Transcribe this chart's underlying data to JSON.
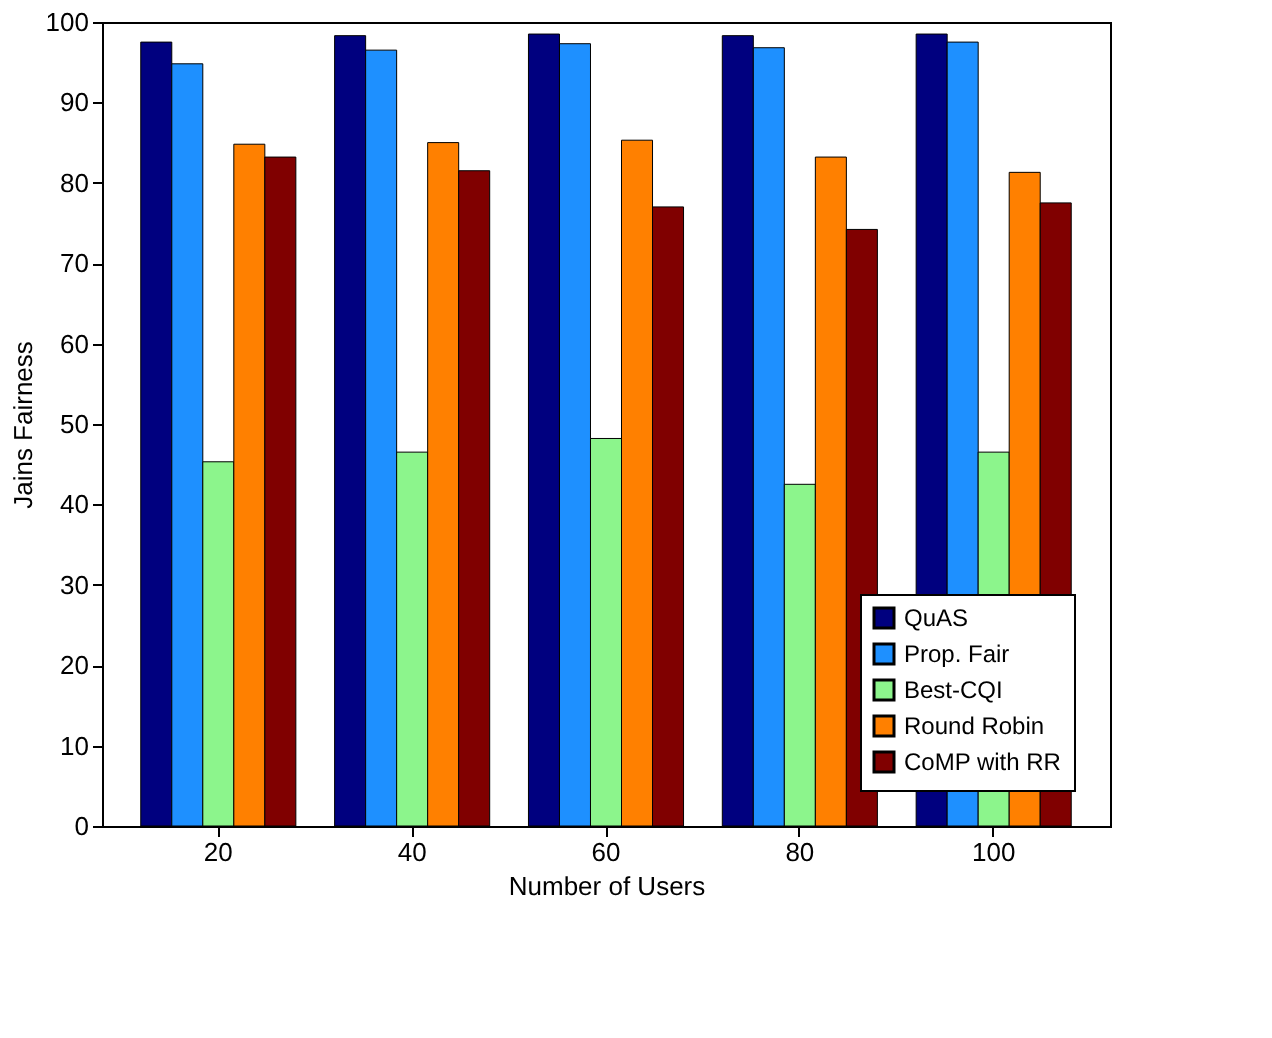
{
  "chart_data": {
    "type": "bar",
    "xlabel": "Number of Users",
    "ylabel": "Jains Fairness",
    "categories": [
      "20",
      "40",
      "60",
      "80",
      "100"
    ],
    "series": [
      {
        "name": "QuAS",
        "color": "#00007f",
        "values": [
          97.5,
          98.3,
          98.5,
          98.3,
          98.5
        ]
      },
      {
        "name": "Prop. Fair",
        "color": "#1e90ff",
        "values": [
          94.8,
          96.5,
          97.3,
          96.8,
          97.5
        ]
      },
      {
        "name": "Best-CQI",
        "color": "#8cf58c",
        "values": [
          45.3,
          46.5,
          48.2,
          42.5,
          46.5
        ]
      },
      {
        "name": "Round Robin",
        "color": "#ff8000",
        "values": [
          84.8,
          85.0,
          85.3,
          83.2,
          81.3
        ]
      },
      {
        "name": "CoMP with RR",
        "color": "#800000",
        "values": [
          83.2,
          81.5,
          77.0,
          74.2,
          77.5
        ]
      }
    ],
    "ylim": [
      0,
      100
    ],
    "yticks": [
      0,
      10,
      20,
      30,
      40,
      50,
      60,
      70,
      80,
      90,
      100
    ],
    "grid": false,
    "legend": "bottom right"
  }
}
